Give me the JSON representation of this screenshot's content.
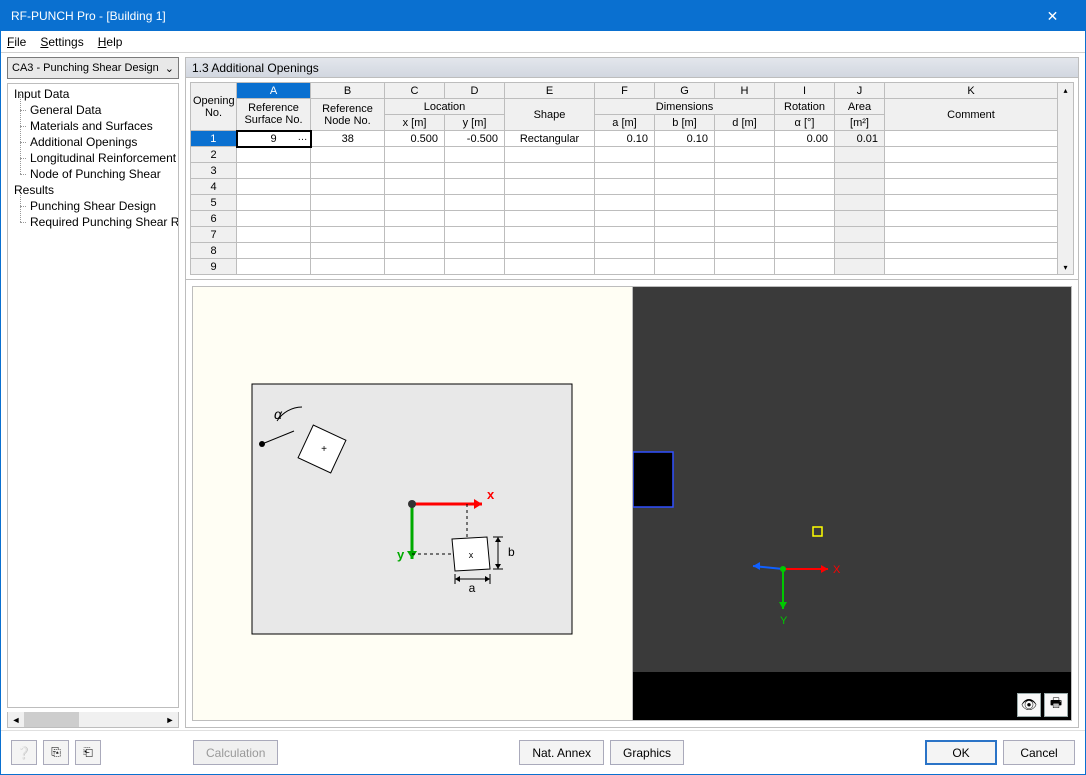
{
  "window": {
    "title": "RF-PUNCH Pro - [Building 1]"
  },
  "menu": {
    "file": "File",
    "settings": "Settings",
    "help": "Help"
  },
  "dropdown": {
    "selected": "CA3 - Punching Shear Design"
  },
  "tree": {
    "input_data": "Input Data",
    "general_data": "General Data",
    "materials": "Materials and Surfaces",
    "openings": "Additional Openings",
    "longitudinal": "Longitudinal Reinforcement",
    "node_punching": "Node of Punching Shear",
    "results": "Results",
    "design": "Punching Shear Design",
    "required": "Required Punching Shear Reinf"
  },
  "section": {
    "title": "1.3 Additional Openings"
  },
  "table": {
    "letters": [
      "A",
      "B",
      "C",
      "D",
      "E",
      "F",
      "G",
      "H",
      "I",
      "J",
      "K"
    ],
    "header1": {
      "opening_no": "Opening\nNo.",
      "ref_surface": "Reference\nSurface No.",
      "ref_node": "Reference\nNode No.",
      "location": "Location",
      "x": "x [m]",
      "y": "y [m]",
      "shape": "Shape",
      "dimensions": "Dimensions",
      "a": "a [m]",
      "b": "b [m]",
      "d": "d [m]",
      "rotation": "Rotation",
      "alpha": "α [°]",
      "area": "Area",
      "area_unit": "[m²]",
      "comment": "Comment"
    },
    "rows": [
      {
        "no": "1",
        "surf": "9",
        "node": "38",
        "x": "0.500",
        "y": "-0.500",
        "shape": "Rectangular",
        "a": "0.10",
        "b": "0.10",
        "d": "",
        "rot": "0.00",
        "area": "0.01",
        "comment": ""
      },
      {
        "no": "2"
      },
      {
        "no": "3"
      },
      {
        "no": "4"
      },
      {
        "no": "5"
      },
      {
        "no": "6"
      },
      {
        "no": "7"
      },
      {
        "no": "8"
      },
      {
        "no": "9"
      }
    ]
  },
  "diagram": {
    "alpha_label": "α",
    "x_label": "x",
    "y_label": "y",
    "a_label": "a",
    "b_label": "b"
  },
  "viewer": {
    "x_label": "X",
    "y_label": "Y",
    "colors": {
      "bg": "#3a3a3a",
      "x_axis": "#ff0000",
      "y_axis": "#00c800",
      "z_axis": "#1060ff",
      "node": "#ffff00"
    }
  },
  "buttons": {
    "calc": "Calculation",
    "annex": "Nat. Annex",
    "graphics": "Graphics",
    "ok": "OK",
    "cancel": "Cancel"
  }
}
